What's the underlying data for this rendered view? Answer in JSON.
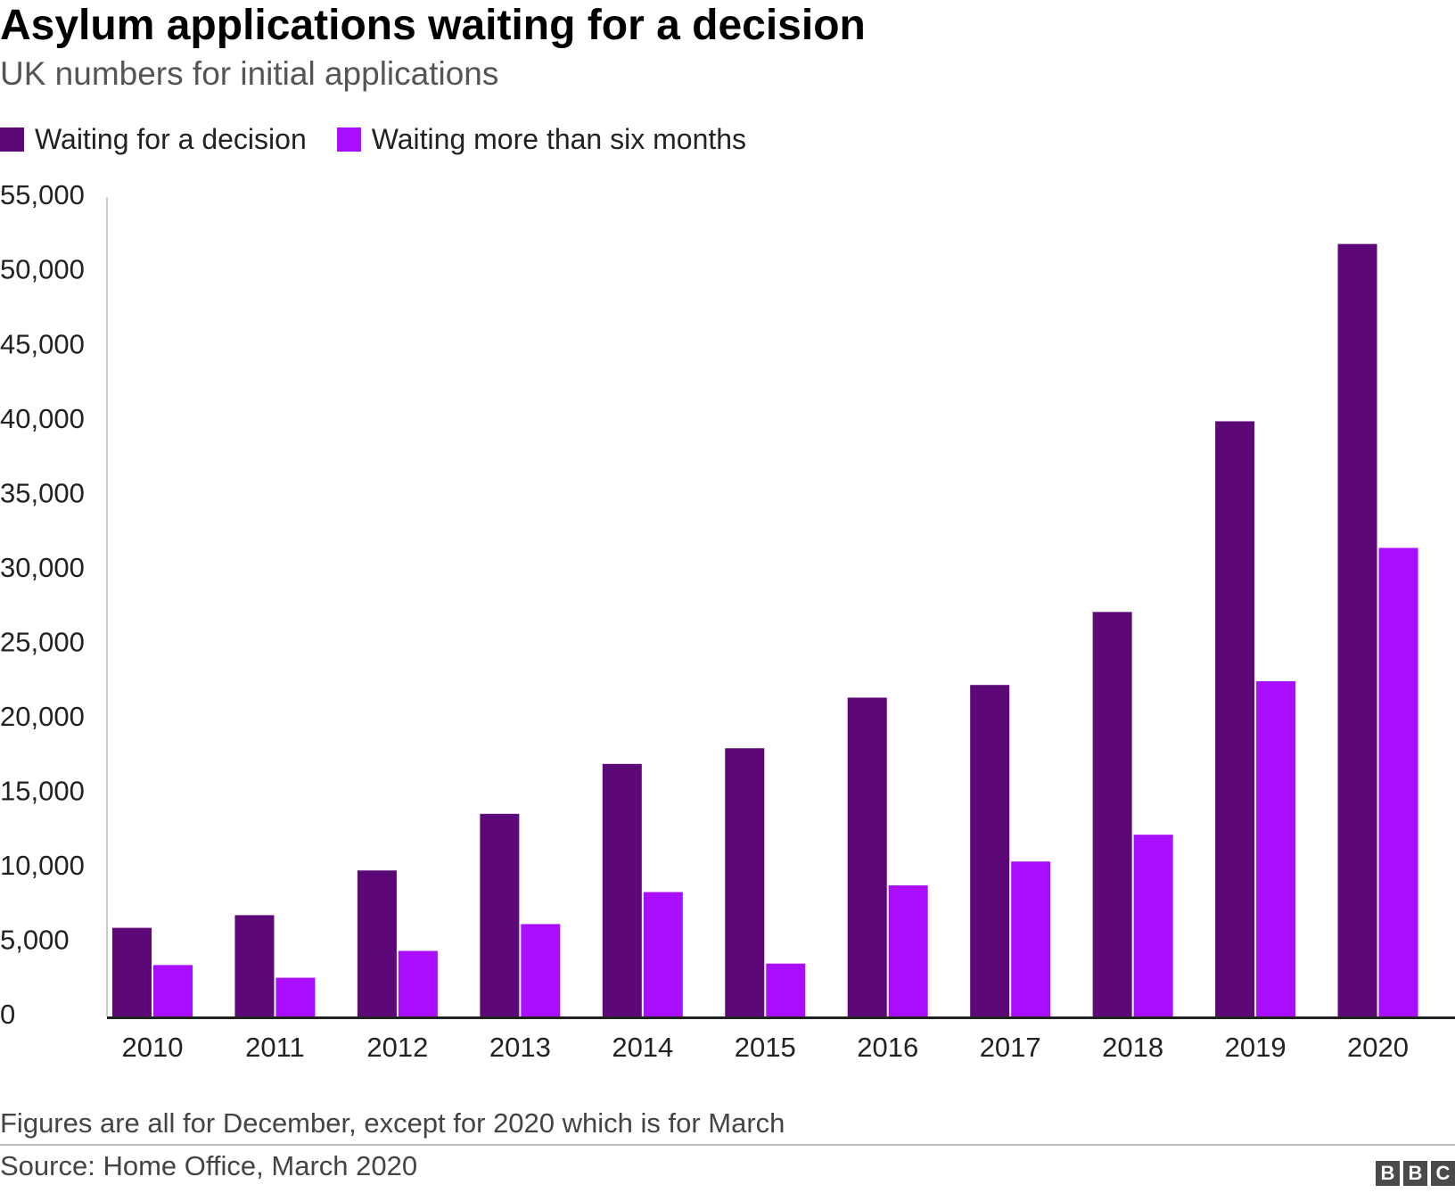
{
  "chart_data": {
    "type": "bar",
    "title": "Asylum applications waiting for a decision",
    "subtitle": "UK numbers for initial applications",
    "categories": [
      "2010",
      "2011",
      "2012",
      "2013",
      "2014",
      "2015",
      "2016",
      "2017",
      "2018",
      "2019",
      "2020"
    ],
    "series": [
      {
        "name": "Waiting for a decision",
        "color": "#5c0977",
        "values": [
          5950,
          6800,
          9800,
          13600,
          16950,
          18000,
          21400,
          22250,
          27150,
          39950,
          51850
        ]
      },
      {
        "name": "Waiting more than six months",
        "color": "#aa0eff",
        "values": [
          3450,
          2600,
          4400,
          6200,
          8350,
          3550,
          8800,
          10400,
          12200,
          22500,
          31450
        ]
      }
    ],
    "xlabel": "",
    "ylabel": "",
    "ylim": [
      0,
      55000
    ],
    "yticks": [
      0,
      5000,
      10000,
      15000,
      20000,
      25000,
      30000,
      35000,
      40000,
      45000,
      50000,
      55000
    ],
    "ytick_labels": [
      "0",
      "5,000",
      "10,000",
      "15,000",
      "20,000",
      "25,000",
      "30,000",
      "35,000",
      "40,000",
      "45,000",
      "50,000",
      "55,000"
    ],
    "legend_position": "top-left",
    "grid": false
  },
  "footer": {
    "note": "Figures are all for December, except for 2020 which is for March",
    "source": "Source: Home Office, March 2020",
    "logo": [
      "B",
      "B",
      "C"
    ]
  }
}
